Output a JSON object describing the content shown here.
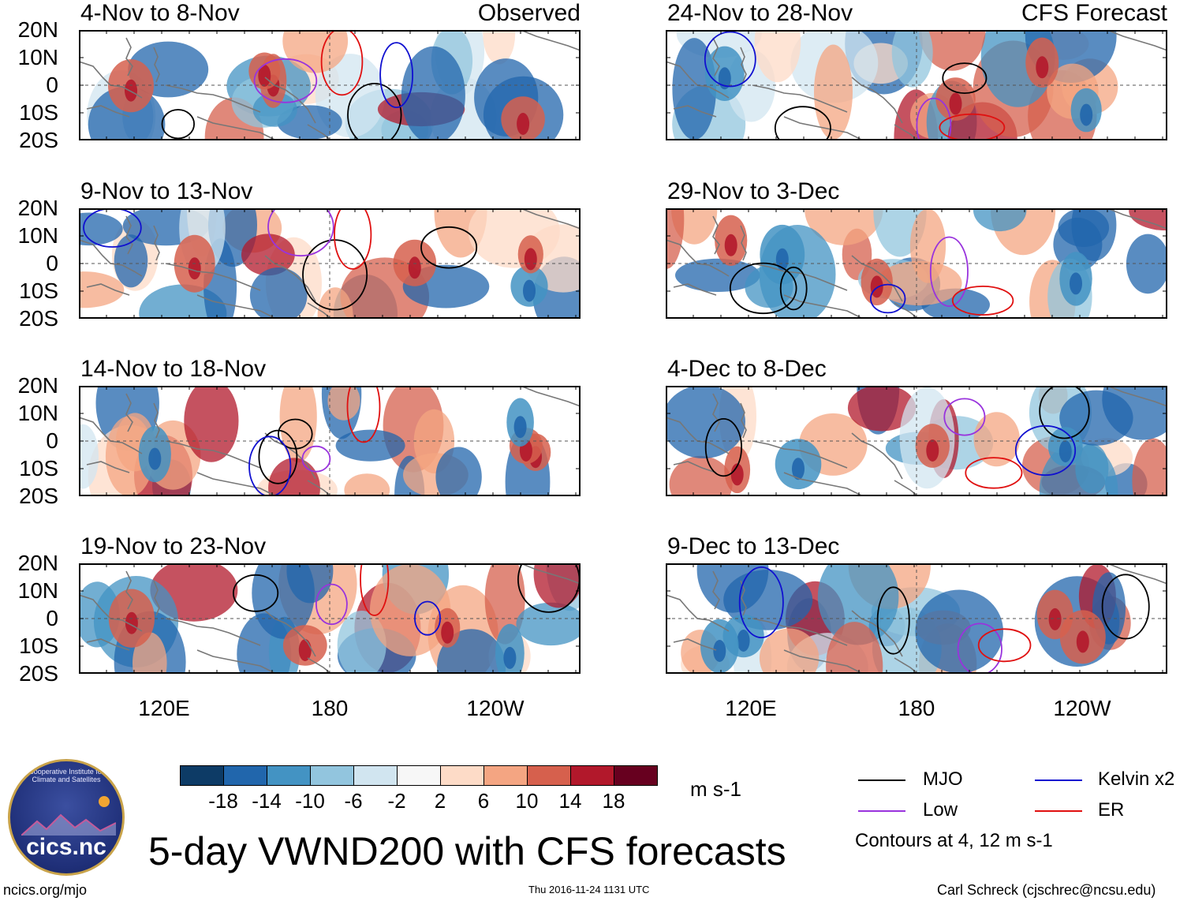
{
  "chart_data": [
    {
      "type": "heatmap",
      "title": "4-Nov to 8-Nov",
      "tag": "Observed",
      "variable": "VWND200",
      "units": "m s-1",
      "ylim": [
        -20,
        20
      ],
      "xlim": [
        "70E",
        "90W"
      ]
    },
    {
      "type": "heatmap",
      "title": "9-Nov to 13-Nov",
      "tag": "",
      "variable": "VWND200",
      "units": "m s-1",
      "ylim": [
        -20,
        20
      ],
      "xlim": [
        "70E",
        "90W"
      ]
    },
    {
      "type": "heatmap",
      "title": "14-Nov to 18-Nov",
      "tag": "",
      "variable": "VWND200",
      "units": "m s-1",
      "ylim": [
        -20,
        20
      ],
      "xlim": [
        "70E",
        "90W"
      ]
    },
    {
      "type": "heatmap",
      "title": "19-Nov to 23-Nov",
      "tag": "",
      "variable": "VWND200",
      "units": "m s-1",
      "ylim": [
        -20,
        20
      ],
      "xlim": [
        "70E",
        "90W"
      ]
    },
    {
      "type": "heatmap",
      "title": "24-Nov to 28-Nov",
      "tag": "CFS Forecast",
      "variable": "VWND200",
      "units": "m s-1",
      "ylim": [
        -20,
        20
      ],
      "xlim": [
        "70E",
        "90W"
      ]
    },
    {
      "type": "heatmap",
      "title": "29-Nov to 3-Dec",
      "tag": "",
      "variable": "VWND200",
      "units": "m s-1",
      "ylim": [
        -20,
        20
      ],
      "xlim": [
        "70E",
        "90W"
      ]
    },
    {
      "type": "heatmap",
      "title": "4-Dec to 8-Dec",
      "tag": "",
      "variable": "VWND200",
      "units": "m s-1",
      "ylim": [
        -20,
        20
      ],
      "xlim": [
        "70E",
        "90W"
      ]
    },
    {
      "type": "heatmap",
      "title": "9-Dec to 13-Dec",
      "tag": "",
      "variable": "VWND200",
      "units": "m s-1",
      "ylim": [
        -20,
        20
      ],
      "xlim": [
        "70E",
        "90W"
      ]
    }
  ],
  "lat_ticks": [
    "20N",
    "10N",
    "0",
    "10S",
    "20S"
  ],
  "lon_ticks": [
    "120E",
    "180",
    "120W"
  ],
  "colorbar": {
    "colors": [
      "#0d3b66",
      "#2166ac",
      "#4393c3",
      "#92c5de",
      "#d1e5f0",
      "#f7f7f7",
      "#fddbc7",
      "#f4a582",
      "#d6604d",
      "#b2182b",
      "#67001f"
    ],
    "ticks": [
      "-18",
      "-14",
      "-10",
      "-6",
      "-2",
      "2",
      "6",
      "10",
      "14",
      "18"
    ],
    "units": "m s-1"
  },
  "legend": {
    "items": [
      {
        "label": "MJO",
        "color": "#000000"
      },
      {
        "label": "Kelvin x2",
        "color": "#1010d0"
      },
      {
        "label": "Low",
        "color": "#9933dd"
      },
      {
        "label": "ER",
        "color": "#e01010"
      }
    ],
    "note": "Contours at 4, 12 m s-1"
  },
  "main_title": "5-day VWND200 with CFS forecasts",
  "footer": {
    "left": "ncics.org/mjo",
    "center": "Thu 2016-11-24 1131 UTC",
    "right": "Carl Schreck (cjschrec@ncsu.edu)"
  },
  "logo": {
    "text": "cics.nc",
    "arc": "Cooperative Institute for Climate and Satellites"
  },
  "palette": {
    "neg_strong": "#0d3b66",
    "pos_strong": "#67001f",
    "coast": "#777777"
  }
}
